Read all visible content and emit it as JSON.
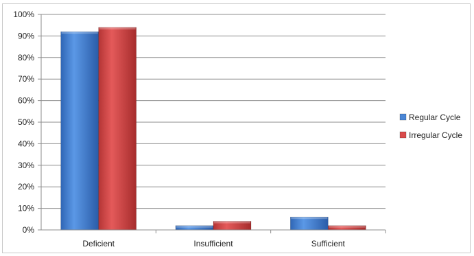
{
  "chart_data": {
    "type": "bar",
    "title": "",
    "xlabel": "",
    "ylabel": "",
    "categories": [
      "Deficient",
      "Insufficient",
      "Sufficient"
    ],
    "series": [
      {
        "name": "Regular Cycle",
        "values": [
          92,
          2,
          6
        ],
        "color": "#4a86d6"
      },
      {
        "name": "Irregular Cycle",
        "values": [
          94,
          4,
          2
        ],
        "color": "#d94b4b"
      }
    ],
    "ylim": [
      0,
      100
    ],
    "yticks": [
      0,
      10,
      20,
      30,
      40,
      50,
      60,
      70,
      80,
      90,
      100
    ],
    "ytick_labels": [
      "0%",
      "10%",
      "20%",
      "30%",
      "40%",
      "50%",
      "60%",
      "70%",
      "80%",
      "90%",
      "100%"
    ],
    "grid": true,
    "legend": "right"
  }
}
